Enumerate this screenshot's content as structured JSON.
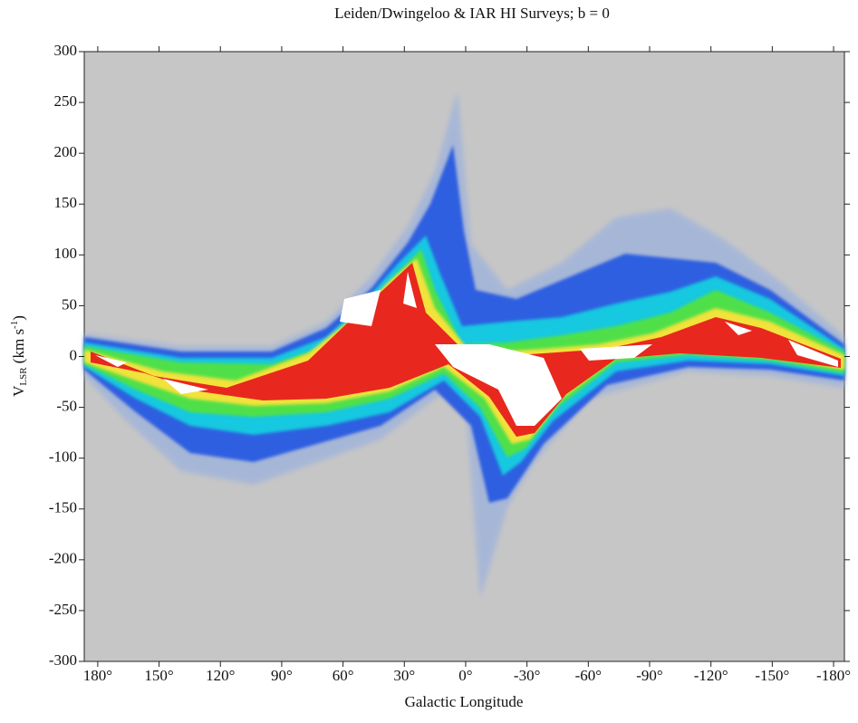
{
  "chart_data": {
    "type": "heatmap",
    "title": "Leiden/Dwingeloo & IAR HI Surveys;  b = 0",
    "xlabel": "Galactic Longitude",
    "ylabel": {
      "main": "V",
      "sub": "LSR",
      "unit": " (km s",
      "sup": "-1",
      "close": ")"
    },
    "xlim": [
      186.6,
      -185.3
    ],
    "ylim": [
      -300,
      300
    ],
    "xticks": [
      {
        "value": 180,
        "label": "180°"
      },
      {
        "value": 150,
        "label": "150°"
      },
      {
        "value": 120,
        "label": "120°"
      },
      {
        "value": 90,
        "label": "90°"
      },
      {
        "value": 60,
        "label": "60°"
      },
      {
        "value": 30,
        "label": "30°"
      },
      {
        "value": 0,
        "label": "0°"
      },
      {
        "value": -30,
        "label": "-30°"
      },
      {
        "value": -60,
        "label": "-60°"
      },
      {
        "value": -90,
        "label": "-90°"
      },
      {
        "value": -120,
        "label": "-120°"
      },
      {
        "value": -150,
        "label": "-150°"
      },
      {
        "value": -180,
        "label": "-180°"
      }
    ],
    "yticks": [
      300,
      250,
      200,
      150,
      100,
      50,
      0,
      -50,
      -100,
      -150,
      -200,
      -250,
      -300
    ]
  }
}
